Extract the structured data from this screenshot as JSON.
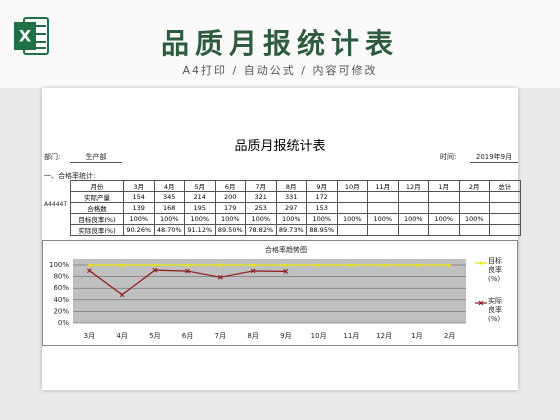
{
  "header": {
    "title": "品质月报统计表",
    "subtitle": "A4打印 / 自动公式 / 内容可修改"
  },
  "sheet": {
    "title": "品质月报统计表",
    "dept_label": "部门:",
    "dept": "生产部",
    "time_label": "时间:",
    "time": "2019年9月",
    "section": "一、合格率统计:",
    "side_label": "A4444T",
    "table": {
      "header": [
        "月份",
        "3月",
        "4月",
        "5月",
        "6月",
        "7月",
        "8月",
        "9月",
        "10月",
        "11月",
        "12月",
        "1月",
        "2月",
        "总计"
      ],
      "rows": [
        [
          "实际产量",
          "154",
          "345",
          "214",
          "200",
          "321",
          "331",
          "172"
        ],
        [
          "合格数",
          "139",
          "168",
          "195",
          "179",
          "253",
          "297",
          "153"
        ],
        [
          "目标良率(%)",
          "100%",
          "100%",
          "100%",
          "100%",
          "100%",
          "100%",
          "100%",
          "100%",
          "100%",
          "100%",
          "100%",
          "100%"
        ],
        [
          "实际良率(%)",
          "90.26%",
          "48.70%",
          "91.12%",
          "89.50%",
          "78.82%",
          "89.73%",
          "88.95%"
        ]
      ]
    }
  },
  "chart_data": {
    "type": "line",
    "title": "合格率趋势图",
    "categories": [
      "3月",
      "4月",
      "5月",
      "6月",
      "7月",
      "8月",
      "9月",
      "10月",
      "11月",
      "12月",
      "1月",
      "2月"
    ],
    "series": [
      {
        "name": "目标良率(%)",
        "color": "#e6e600",
        "values": [
          100,
          100,
          100,
          100,
          100,
          100,
          100,
          100,
          100,
          100,
          100,
          100
        ]
      },
      {
        "name": "实际良率(%)",
        "color": "#8b1a1a",
        "values": [
          90.26,
          48.7,
          91.12,
          89.5,
          78.82,
          89.73,
          88.95,
          null,
          null,
          null,
          null,
          null
        ]
      }
    ],
    "ylim": [
      0,
      100
    ],
    "yticks": [
      {
        "value": 0,
        "label": "0%"
      },
      {
        "value": 20,
        "label": "20%"
      },
      {
        "value": 40,
        "label": "40%"
      },
      {
        "value": 60,
        "label": "60%"
      },
      {
        "value": 80,
        "label": "80%"
      },
      {
        "value": 100,
        "label": "100%"
      }
    ],
    "grid": true,
    "legend": "right"
  }
}
